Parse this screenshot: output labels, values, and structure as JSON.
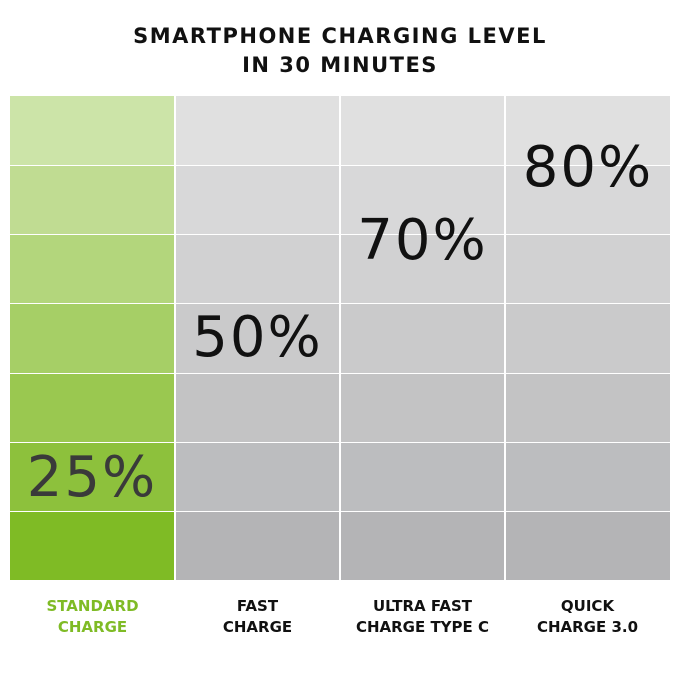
{
  "title_line1": "SMARTPHONE CHARGING LEVEL",
  "title_line2": "IN 30 MINUTES",
  "colors": {
    "green_rows": [
      "#cce4a8",
      "#c0dc92",
      "#b3d67c",
      "#a6cf66",
      "#9ac850",
      "#8dc13c",
      "#7fbb25"
    ],
    "grey_rows": [
      "#e0e0e0",
      "#d8d8d9",
      "#d1d1d2",
      "#cacacb",
      "#c3c3c4",
      "#bcbdbf",
      "#b4b4b6"
    ],
    "highlight_label": "#7fbb25",
    "highlight_value": "#3a3a3a",
    "value_text": "#111111"
  },
  "chart_data": {
    "type": "bar",
    "title": "SMARTPHONE CHARGING LEVEL IN 30 MINUTES",
    "categories": [
      [
        "STANDARD",
        "CHARGE"
      ],
      [
        "FAST",
        "CHARGE"
      ],
      [
        "ULTRA FAST",
        "CHARGE TYPE C"
      ],
      [
        "QUICK",
        "CHARGE 3.0"
      ]
    ],
    "values": [
      25,
      50,
      70,
      80
    ],
    "value_labels": [
      "25%",
      "50%",
      "70%",
      "80%"
    ],
    "ylim": [
      0,
      100
    ],
    "grid_rows": 7,
    "highlighted_index": 0
  }
}
